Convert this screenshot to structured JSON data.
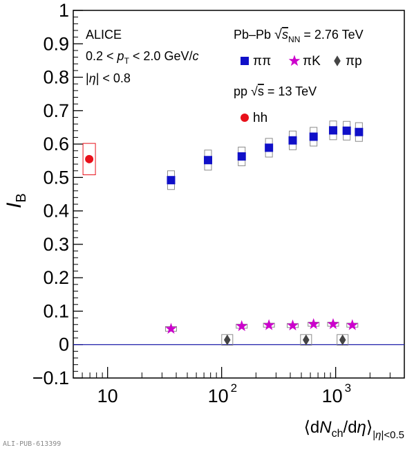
{
  "chart_data": {
    "type": "scatter",
    "x_scale": "log",
    "xlim": [
      5,
      4000
    ],
    "ylim": [
      -0.1,
      1.0
    ],
    "grid": false,
    "ylabel": "I_B",
    "xlabel": "⟨dN_ch/dη⟩_|η|<0.5",
    "y_ticks": [
      -0.1,
      0,
      0.1,
      0.2,
      0.3,
      0.4,
      0.5,
      0.6,
      0.7,
      0.8,
      0.9,
      1
    ],
    "y_tick_labels": [
      "−0.1",
      "0",
      "0.1",
      "0.2",
      "0.3",
      "0.4",
      "0.5",
      "0.6",
      "0.7",
      "0.8",
      "0.9",
      "1"
    ],
    "x_ticks": [
      10,
      100,
      1000
    ],
    "x_tick_labels": [
      {
        "base": "10",
        "exp": ""
      },
      {
        "base": "10",
        "exp": "2"
      },
      {
        "base": "10",
        "exp": "3"
      }
    ],
    "reference_line_y": 0,
    "annotations": {
      "experiment": "ALICE",
      "pt_range": "0.2 < p_T < 2.0 GeV/c",
      "eta_range": "|η| < 0.8",
      "pbpb_label": "Pb–Pb   √s_NN = 2.76 TeV",
      "pp_label": "pp   √s = 13 TeV"
    },
    "series": [
      {
        "name": "ππ",
        "marker": "square",
        "color": "#1010c8",
        "x": [
          36,
          76,
          150,
          260,
          420,
          640,
          950,
          1250,
          1600
        ],
        "y": [
          0.492,
          0.552,
          0.563,
          0.589,
          0.611,
          0.622,
          0.641,
          0.64,
          0.636
        ],
        "syst": [
          0.028,
          0.03,
          0.028,
          0.028,
          0.028,
          0.028,
          0.028,
          0.028,
          0.028
        ]
      },
      {
        "name": "πK",
        "marker": "star",
        "color": "#cc00cc",
        "x": [
          36,
          150,
          260,
          420,
          640,
          950,
          1400
        ],
        "y": [
          0.047,
          0.055,
          0.058,
          0.057,
          0.061,
          0.061,
          0.058
        ],
        "syst": [
          0.007,
          0.006,
          0.006,
          0.006,
          0.006,
          0.006,
          0.006
        ]
      },
      {
        "name": "πp",
        "marker": "diamond",
        "color": "#444444",
        "x": [
          112,
          550,
          1150
        ],
        "y": [
          0.014,
          0.014,
          0.014
        ],
        "syst": [
          0.016,
          0.016,
          0.016
        ]
      },
      {
        "name": "hh",
        "marker": "circle",
        "color": "#e8101a",
        "x": [
          6.9
        ],
        "y": [
          0.555
        ],
        "syst": [
          0.047
        ]
      }
    ]
  },
  "watermark": "ALI-PUB-613399"
}
